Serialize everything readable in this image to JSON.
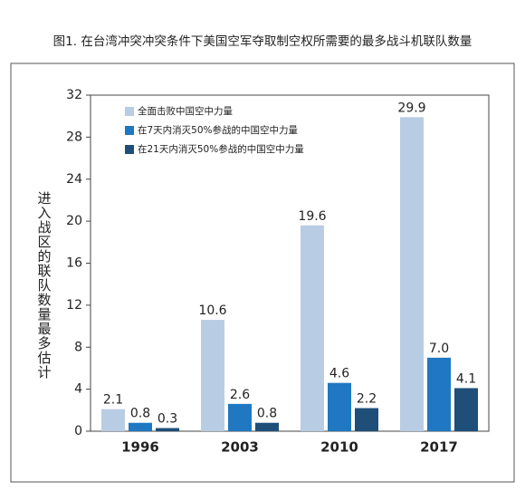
{
  "chart_data": {
    "type": "bar",
    "title": "图1. 在台湾冲突冲突条件下美国空军夺取制空权所需要的最多战斗机联队数量",
    "y_label": "进入战区的联队数量最多估计",
    "categories": [
      "1996",
      "2003",
      "2010",
      "2017"
    ],
    "series": [
      {
        "name": "全面击败中国空中力量",
        "color": "#b8cce4",
        "values": [
          2.1,
          10.6,
          19.6,
          29.9
        ],
        "value_labels": [
          "2.1",
          "10.6",
          "19.6",
          "29.9"
        ]
      },
      {
        "name": "在7天内消灭50%参战的中国空中力量",
        "color": "#1f78c1",
        "values": [
          0.8,
          2.6,
          4.6,
          7.0
        ],
        "value_labels": [
          "0.8",
          "2.6",
          "4.6",
          "7.0"
        ]
      },
      {
        "name": "在21天内消灭50%参战的中国空中力量",
        "color": "#1f4e79",
        "values": [
          0.3,
          0.8,
          2.2,
          4.1
        ],
        "value_labels": [
          "0.3",
          "0.8",
          "2.2",
          "4.1"
        ]
      }
    ],
    "ylim": [
      0,
      32
    ],
    "yticks": [
      0,
      4,
      8,
      12,
      16,
      20,
      24,
      28,
      32
    ],
    "legend": "upper-left"
  }
}
